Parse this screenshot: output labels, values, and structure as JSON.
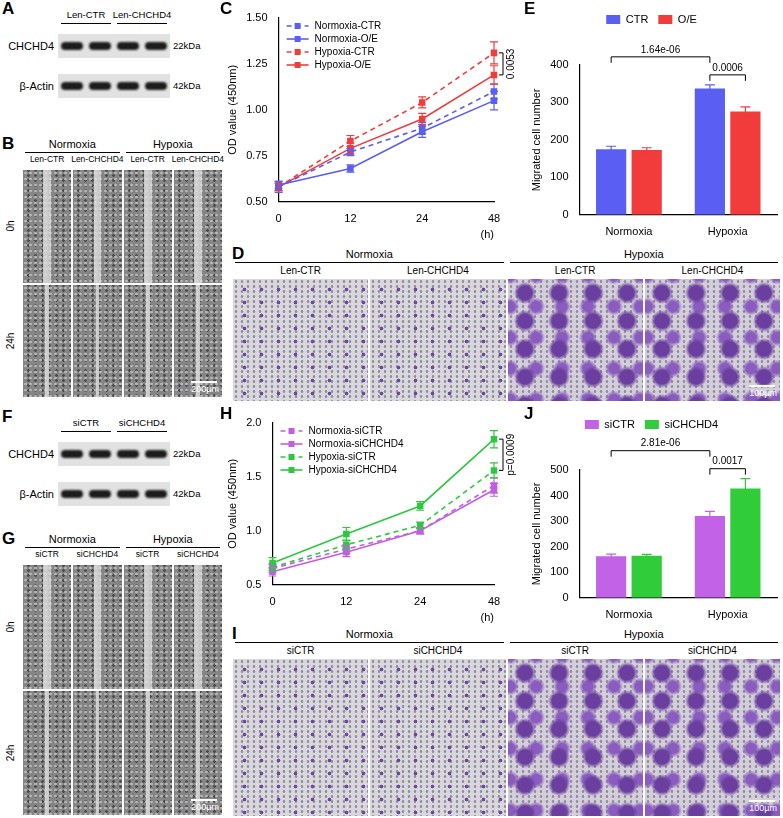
{
  "panels": [
    {
      "panel": "A",
      "type": "western_blot",
      "groups": [
        "Len-CTR",
        "Len-CHCHD4"
      ],
      "rows": [
        {
          "protein": "CHCHD4",
          "size": "22kDa"
        },
        {
          "protein": "β-Actin",
          "size": "42kDa"
        }
      ]
    },
    {
      "panel": "B",
      "type": "scratch_assay",
      "conditions": [
        "Normoxia",
        "Hypoxia"
      ],
      "groups": [
        "Len-CTR",
        "Len-CHCHD4"
      ],
      "times": [
        "0h",
        "24h"
      ],
      "scale_bar": "200µm"
    },
    {
      "panel": "D",
      "type": "transwell_assay",
      "conditions": [
        "Normoxia",
        "Hypoxia"
      ],
      "groups": [
        "Len-CTR",
        "Len-CHCHD4"
      ],
      "scale_bar": "100µm"
    },
    {
      "panel": "F",
      "type": "western_blot",
      "groups": [
        "siCTR",
        "siCHCHD4"
      ],
      "rows": [
        {
          "protein": "CHCHD4",
          "size": "22kDa"
        },
        {
          "protein": "β-Actin",
          "size": "42kDa"
        }
      ]
    },
    {
      "panel": "G",
      "type": "scratch_assay",
      "conditions": [
        "Normoxia",
        "Hypoxia"
      ],
      "groups": [
        "siCTR",
        "siCHCHD4"
      ],
      "times": [
        "0h",
        "24h"
      ],
      "scale_bar": "200µm"
    },
    {
      "panel": "I",
      "type": "transwell_assay",
      "conditions": [
        "Normoxia",
        "Hypoxia"
      ],
      "groups": [
        "siCTR",
        "siCHCHD4"
      ],
      "scale_bar": "100µm"
    }
  ],
  "chart_data": [
    {
      "panel": "C",
      "type": "line",
      "x_label": "(h)",
      "y_label": "OD value (450nm)",
      "categories": [
        "0",
        "12",
        "24",
        "48"
      ],
      "ylim": [
        0.5,
        1.5
      ],
      "yticks": [
        {
          "value": 0.5,
          "label": "0.50"
        },
        0.75,
        {
          "value": 1,
          "label": "1.00"
        },
        1.25,
        {
          "value": 1.5,
          "label": "1.50"
        }
      ],
      "grid": false,
      "legend": "top-left",
      "marker": "square",
      "series": [
        {
          "name": "Normoxia-CTR",
          "color": "#5a5ef2",
          "line_style": "dashed",
          "values": [
            0.58,
            0.77,
            0.9,
            1.1
          ],
          "errors": [
            0.03,
            0.02,
            0.03,
            0.04
          ]
        },
        {
          "name": "Normoxia-O/E",
          "color": "#5a5ef2",
          "line_style": "solid",
          "values": [
            0.59,
            0.68,
            0.88,
            1.05
          ],
          "errors": [
            0.02,
            0.02,
            0.03,
            0.05
          ]
        },
        {
          "name": "Hypoxia-CTR",
          "color": "#f03c3c",
          "line_style": "dashed",
          "values": [
            0.58,
            0.83,
            1.04,
            1.31
          ],
          "errors": [
            0.02,
            0.03,
            0.03,
            0.06
          ]
        },
        {
          "name": "Hypoxia-O/E",
          "color": "#f03c3c",
          "line_style": "solid",
          "values": [
            0.58,
            0.79,
            0.95,
            1.19
          ],
          "errors": [
            0.02,
            0.03,
            0.03,
            0.05
          ]
        }
      ],
      "annotations": [
        {
          "text": "0.0053",
          "x": "48",
          "series": [
            "Hypoxia-CTR",
            "Hypoxia-O/E"
          ]
        }
      ]
    },
    {
      "panel": "E",
      "type": "bar",
      "y_label": "Migrated cell number",
      "categories": [
        "Normoxia",
        "Hypoxia"
      ],
      "ylim": [
        0,
        400
      ],
      "yticks": [
        0,
        100,
        200,
        300,
        400
      ],
      "grid": false,
      "legend": "top",
      "series": [
        {
          "name": "CTR",
          "color": "#5a5ef2",
          "values": [
            175,
            337
          ],
          "errors": [
            8,
            10
          ]
        },
        {
          "name": "O/E",
          "color": "#f23b3b",
          "values": [
            173,
            276
          ],
          "errors": [
            6,
            12
          ]
        }
      ],
      "annotations": [
        {
          "text": "1.64e-06",
          "bars": [
            [
              "Normoxia",
              "CTR"
            ],
            [
              "Hypoxia",
              "CTR"
            ]
          ]
        },
        {
          "text": "0.0006",
          "bars": [
            [
              "Hypoxia",
              "CTR"
            ],
            [
              "Hypoxia",
              "O/E"
            ]
          ]
        }
      ]
    },
    {
      "panel": "H",
      "type": "line",
      "x_label": "(h)",
      "categories": [
        "0",
        "12",
        "24",
        "48"
      ],
      "ylim": [
        0.5,
        2
      ],
      "yticks": [
        0.5,
        {
          "value": 1,
          "label": "1.0"
        },
        1.5,
        {
          "value": 2,
          "label": "2.0"
        }
      ],
      "grid": false,
      "legend": "top-left",
      "marker": "square",
      "y_label": "OD value (450nm)",
      "series": [
        {
          "name": "Normoxia-siCTR",
          "color": "#c060e0",
          "line_style": "dashed",
          "values": [
            0.65,
            0.83,
            1.0,
            1.42
          ],
          "errors": [
            0.04,
            0.04,
            0.03,
            0.07
          ]
        },
        {
          "name": "Normoxia-siCHCHD4",
          "color": "#c060e0",
          "line_style": "solid",
          "values": [
            0.62,
            0.8,
            1.0,
            1.38
          ],
          "errors": [
            0.04,
            0.04,
            0.03,
            0.06
          ]
        },
        {
          "name": "Hypoxia-siCTR",
          "color": "#2ec840",
          "line_style": "dashed",
          "values": [
            0.66,
            0.87,
            1.05,
            1.56
          ],
          "errors": [
            0.03,
            0.04,
            0.03,
            0.07
          ]
        },
        {
          "name": "Hypoxia-siCHCHD4",
          "color": "#2ec840",
          "line_style": "solid",
          "values": [
            0.7,
            0.97,
            1.23,
            1.85
          ],
          "errors": [
            0.05,
            0.06,
            0.04,
            0.08
          ]
        }
      ],
      "annotations": [
        {
          "text": "p=0.0009",
          "x": "48",
          "series": [
            "Hypoxia-siCTR",
            "Hypoxia-siCHCHD4"
          ]
        }
      ]
    },
    {
      "panel": "J",
      "type": "bar",
      "y_label": "Migrated cell number",
      "categories": [
        "Normoxia",
        "Hypoxia"
      ],
      "ylim": [
        0,
        500
      ],
      "yticks": [
        0,
        100,
        200,
        300,
        400,
        500
      ],
      "grid": false,
      "legend": "top",
      "series": [
        {
          "name": "siCTR",
          "color": "#c262e6",
          "values": [
            163,
            320
          ],
          "errors": [
            8,
            18
          ]
        },
        {
          "name": "siCHCHD4",
          "color": "#30cc3a",
          "values": [
            165,
            428
          ],
          "errors": [
            5,
            38
          ]
        }
      ],
      "annotations": [
        {
          "text": "2.81e-06",
          "bars": [
            [
              "Normoxia",
              "siCTR"
            ],
            [
              "Hypoxia",
              "siCTR"
            ]
          ]
        },
        {
          "text": "0.0017",
          "bars": [
            [
              "Hypoxia",
              "siCTR"
            ],
            [
              "Hypoxia",
              "siCHCHD4"
            ]
          ]
        }
      ]
    }
  ]
}
